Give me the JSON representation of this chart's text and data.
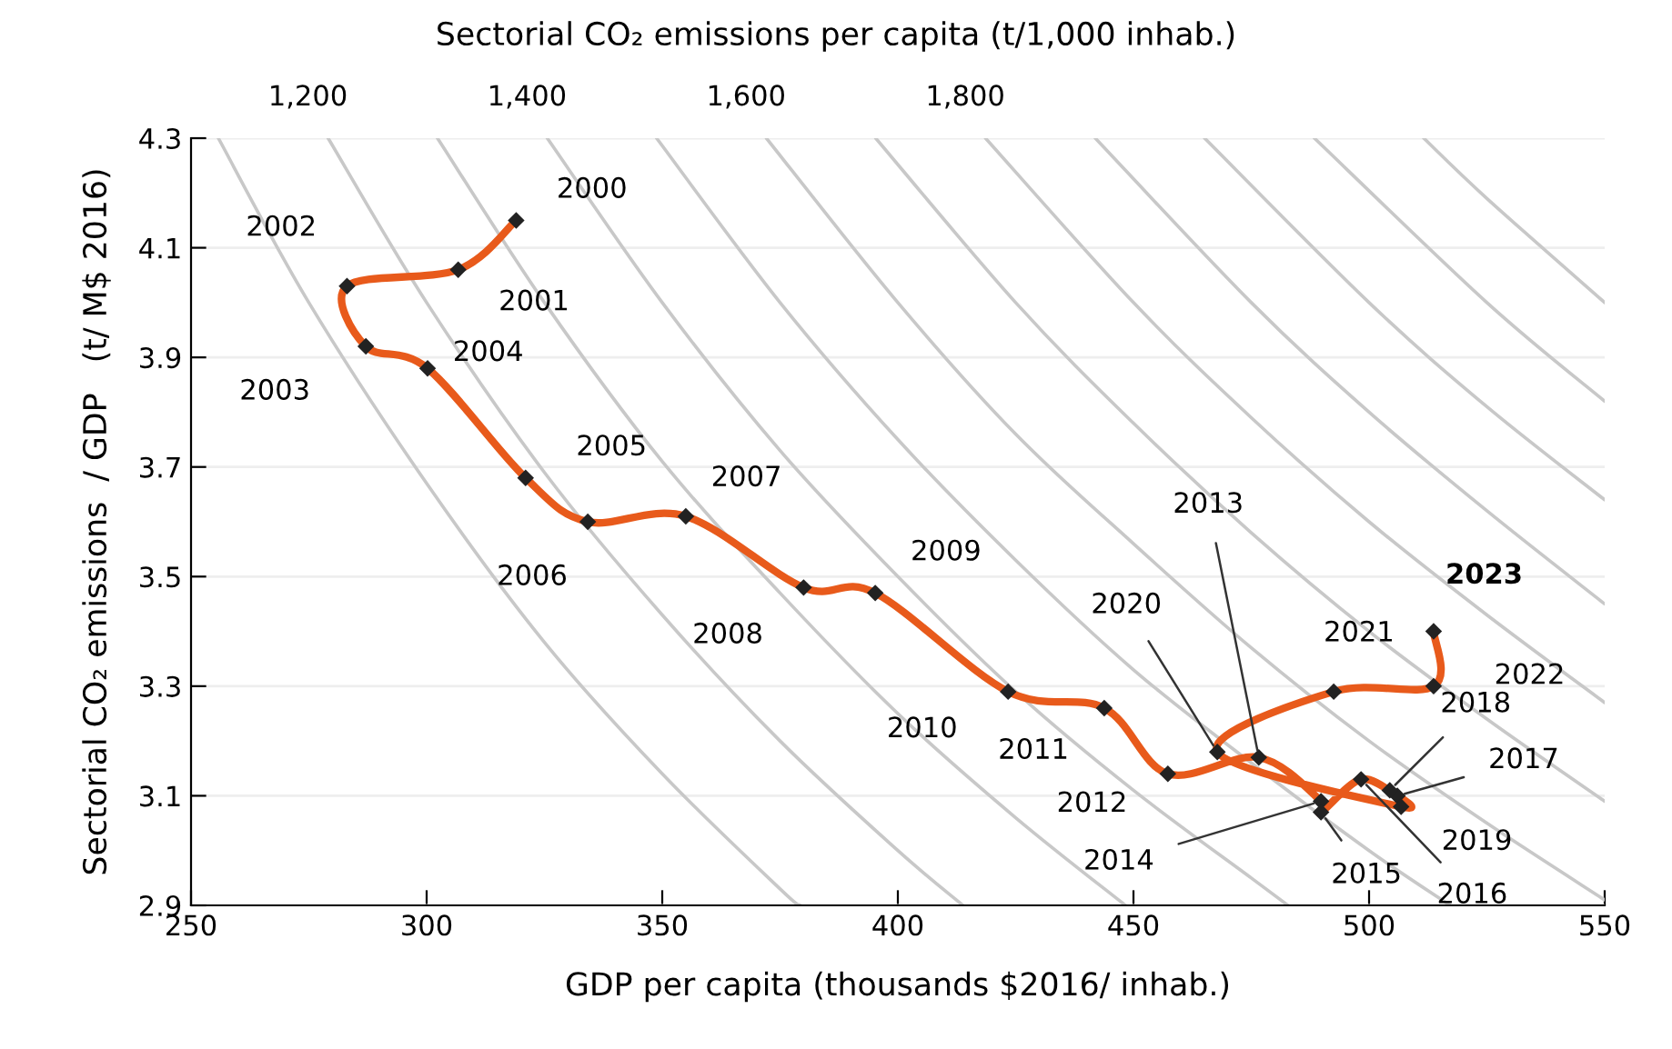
{
  "chart_data": {
    "type": "line",
    "title": "Sectorial CO₂ emissions per capita (t/1,000 inhab.)",
    "xlabel": "GDP per capita (thousands $2016/ inhab.)",
    "ylabel": "Sectorial CO₂ emissions  / GDP   (t/ M$ 2016)",
    "xlim": [
      250,
      550
    ],
    "xticks": [
      250,
      300,
      350,
      400,
      450,
      500,
      550
    ],
    "ylim": [
      2.9,
      4.3
    ],
    "yticks": [
      2.9,
      3.1,
      3.3,
      3.5,
      3.7,
      3.9,
      4.1,
      4.3
    ],
    "grid": "y",
    "annotations": [
      {
        "text": "1,200",
        "x": 279.1,
        "y": 4.3
      },
      {
        "text": "1,400",
        "x": 325.6,
        "y": 4.3
      },
      {
        "text": "1,600",
        "x": 372.1,
        "y": 4.3
      },
      {
        "text": "1,800",
        "x": 418.6,
        "y": 4.3
      },
      {
        "text": "2000",
        "x": 319,
        "y": 4.15
      },
      {
        "text": "2001",
        "x": 306.7,
        "y": 4.06
      },
      {
        "text": "2002",
        "x": 283.1,
        "y": 4.03
      },
      {
        "text": "2003",
        "x": 287.1,
        "y": 3.92
      },
      {
        "text": "2004",
        "x": 300.2,
        "y": 3.88
      },
      {
        "text": "2005",
        "x": 321,
        "y": 3.68
      },
      {
        "text": "2006",
        "x": 334.2,
        "y": 3.6
      },
      {
        "text": "2007",
        "x": 355,
        "y": 3.61
      },
      {
        "text": "2008",
        "x": 380,
        "y": 3.48
      },
      {
        "text": "2009",
        "x": 395.2,
        "y": 3.47
      },
      {
        "text": "2010",
        "x": 423.4,
        "y": 3.29
      },
      {
        "text": "2011",
        "x": 443.8,
        "y": 3.26
      },
      {
        "text": "2012",
        "x": 457.3,
        "y": 3.14
      },
      {
        "text": "2013",
        "x": 476.6,
        "y": 3.17
      },
      {
        "text": "2014",
        "x": 489.8,
        "y": 3.09
      },
      {
        "text": "2015",
        "x": 489.8,
        "y": 3.07
      },
      {
        "text": "2016",
        "x": 498.3,
        "y": 3.13
      },
      {
        "text": "2017",
        "x": 506,
        "y": 3.1
      },
      {
        "text": "2018",
        "x": 504.4,
        "y": 3.11
      },
      {
        "text": "2019",
        "x": 506.8,
        "y": 3.08
      },
      {
        "text": "2020",
        "x": 467.8,
        "y": 3.18
      },
      {
        "text": "2021",
        "x": 492.5,
        "y": 3.29
      },
      {
        "text": "2022",
        "x": 513.7,
        "y": 3.3
      },
      {
        "text": "2023",
        "x": 513.7,
        "y": 3.4
      }
    ],
    "series": [
      {
        "color": "#c8c8c8",
        "marker": "none",
        "x": [
          255.8,
          275,
          300,
          325,
          350,
          375,
          379.3
        ],
        "values": [
          4.3,
          4.0,
          3.67,
          3.38,
          3.14,
          2.93,
          2.9
        ]
      },
      {
        "color": "#c8c8c8",
        "marker": "none",
        "x": [
          279.1,
          300,
          325,
          350,
          375,
          400,
          413.8
        ],
        "values": [
          4.3,
          4.0,
          3.69,
          3.43,
          3.2,
          3.0,
          2.9
        ]
      },
      {
        "color": "#c8c8c8",
        "marker": "none",
        "x": [
          302.3,
          325,
          350,
          375,
          400,
          425,
          448.3
        ],
        "values": [
          4.3,
          4.0,
          3.71,
          3.47,
          3.25,
          3.06,
          2.9
        ]
      },
      {
        "color": "#c8c8c8",
        "marker": "none",
        "x": [
          325.6,
          350,
          375,
          400,
          425,
          450,
          475,
          482.8
        ],
        "values": [
          4.3,
          4.0,
          3.73,
          3.5,
          3.29,
          3.11,
          2.95,
          2.9
        ]
      },
      {
        "color": "#c8c8c8",
        "marker": "none",
        "x": [
          348.8,
          375,
          400,
          425,
          450,
          475,
          500,
          517.2
        ],
        "values": [
          4.3,
          4.0,
          3.75,
          3.53,
          3.33,
          3.16,
          3.0,
          2.9
        ]
      },
      {
        "color": "#c8c8c8",
        "marker": "none",
        "x": [
          372.1,
          400,
          425,
          450,
          475,
          500,
          525,
          550
        ],
        "values": [
          4.3,
          4.0,
          3.76,
          3.56,
          3.37,
          3.2,
          3.05,
          2.91
        ]
      },
      {
        "color": "#c8c8c8",
        "marker": "none",
        "x": [
          395.3,
          425,
          450,
          475,
          500,
          525,
          550
        ],
        "values": [
          4.3,
          4.0,
          3.78,
          3.58,
          3.4,
          3.24,
          3.09
        ]
      },
      {
        "color": "#c8c8c8",
        "marker": "none",
        "x": [
          418.6,
          450,
          475,
          500,
          525,
          550
        ],
        "values": [
          4.3,
          4.0,
          3.79,
          3.6,
          3.43,
          3.27
        ]
      },
      {
        "color": "#c8c8c8",
        "marker": "none",
        "x": [
          441.9,
          475,
          500,
          525,
          550
        ],
        "values": [
          4.3,
          4.0,
          3.8,
          3.62,
          3.45
        ]
      },
      {
        "color": "#c8c8c8",
        "marker": "none",
        "x": [
          465.1,
          500,
          525,
          550
        ],
        "values": [
          4.3,
          4.0,
          3.81,
          3.64
        ]
      },
      {
        "color": "#c8c8c8",
        "marker": "none",
        "x": [
          488.4,
          525,
          550
        ],
        "values": [
          4.3,
          4.0,
          3.82
        ]
      },
      {
        "color": "#c8c8c8",
        "marker": "none",
        "x": [
          511.6,
          525,
          550
        ],
        "values": [
          4.3,
          4.19,
          4.0
        ]
      },
      {
        "color": "#e85a1b",
        "marker": "diamond",
        "x": [
          319,
          306.7,
          283.1,
          287.1,
          300.2,
          321,
          334.2,
          355,
          380,
          395.2,
          423.4,
          443.8,
          457.3,
          476.6,
          489.8,
          489.8,
          498.3,
          506,
          504.4,
          506.8,
          467.8,
          492.5,
          513.7,
          513.7
        ],
        "values": [
          4.15,
          4.06,
          4.03,
          3.92,
          3.88,
          3.68,
          3.6,
          3.61,
          3.48,
          3.47,
          3.29,
          3.26,
          3.14,
          3.17,
          3.09,
          3.07,
          3.13,
          3.1,
          3.11,
          3.08,
          3.18,
          3.29,
          3.3,
          3.4
        ],
        "colors": [
          "#222222",
          "#222222",
          "#222222",
          "#222222",
          "#222222",
          "#222222",
          "#222222",
          "#222222",
          "#222222",
          "#222222",
          "#222222",
          "#222222",
          "#222222",
          "#222222",
          "#222222",
          "#222222",
          "#222222",
          "#222222",
          "#222222",
          "#222222",
          "#222222",
          "#222222",
          "#222222",
          "#222222"
        ]
      }
    ]
  }
}
